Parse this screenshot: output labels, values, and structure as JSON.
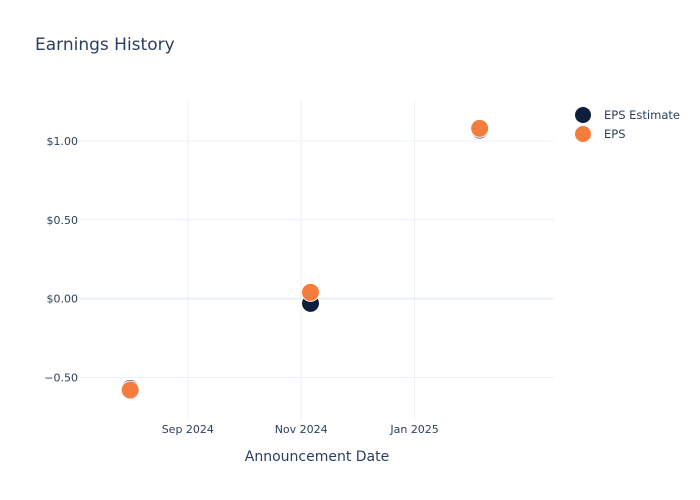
{
  "chart_data": {
    "type": "scatter",
    "title": "Earnings History",
    "xlabel": "Announcement Date",
    "ylabel": "",
    "x_axis_type": "date",
    "xlim": [
      "2024-07-05",
      "2025-03-17"
    ],
    "ylim": [
      -0.77,
      1.26
    ],
    "x_ticks": [
      {
        "value": "2024-09-01",
        "label": "Sep 2024"
      },
      {
        "value": "2024-11-01",
        "label": "Nov 2024"
      },
      {
        "value": "2025-01-01",
        "label": "Jan 2025"
      }
    ],
    "y_ticks": [
      {
        "value": -0.5,
        "label": "−0.50"
      },
      {
        "value": 0,
        "label": "$0.00"
      },
      {
        "value": 0.5,
        "label": "$0.50"
      },
      {
        "value": 1,
        "label": "$1.00"
      }
    ],
    "grid": true,
    "legend_position": "top-right",
    "series": [
      {
        "name": "EPS Estimate",
        "color": "#0d1f3c",
        "points": [
          {
            "x": "2024-08-01",
            "y": -0.57
          },
          {
            "x": "2024-11-06",
            "y": -0.03
          },
          {
            "x": "2025-02-05",
            "y": 1.07
          }
        ]
      },
      {
        "name": "EPS",
        "color": "#f47c3c",
        "points": [
          {
            "x": "2024-08-01",
            "y": -0.58
          },
          {
            "x": "2024-11-06",
            "y": 0.04
          },
          {
            "x": "2025-02-05",
            "y": 1.08
          }
        ]
      }
    ]
  }
}
